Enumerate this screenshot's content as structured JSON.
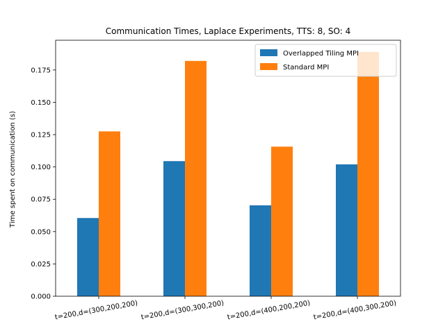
{
  "chart_data": {
    "type": "bar",
    "title": "Communication Times, Laplace Experiments, TTS: 8, SO: 4",
    "xlabel": "",
    "ylabel": "Time spent on communication (s)",
    "categories": [
      "t=200,d=(300,200,200)",
      "t=200,d=(300,300,200)",
      "t=200,d=(400,200,200)",
      "t=200,d=(400,300,200)"
    ],
    "series": [
      {
        "name": "Overlapped Tiling MPI",
        "color": "#1f77b4",
        "values": [
          0.0605,
          0.1045,
          0.0703,
          0.102
        ]
      },
      {
        "name": "Standard MPI",
        "color": "#ff7f0e",
        "values": [
          0.1275,
          0.182,
          0.1157,
          0.189
        ]
      }
    ],
    "ylim": [
      0,
      0.198
    ],
    "yticks": [
      "0.000",
      "0.025",
      "0.050",
      "0.075",
      "0.100",
      "0.125",
      "0.150",
      "0.175"
    ],
    "grid": false,
    "legend_position": "top-right"
  }
}
